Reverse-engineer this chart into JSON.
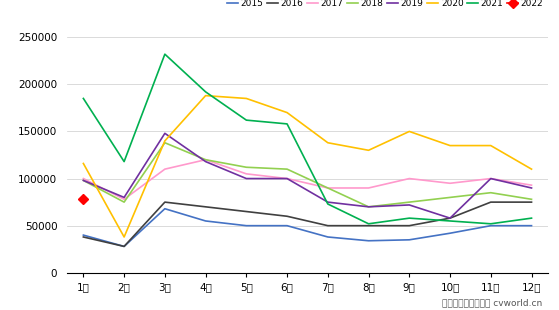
{
  "months": [
    "1月",
    "2月",
    "3月",
    "4月",
    "5月",
    "6月",
    "7月",
    "8月",
    "9月",
    "10月",
    "11月",
    "12月"
  ],
  "series": {
    "2015": {
      "values": [
        40000,
        28000,
        68000,
        55000,
        50000,
        50000,
        38000,
        34000,
        35000,
        42000,
        50000,
        50000
      ],
      "color": "#4472C4",
      "marker": null,
      "linewidth": 1.2
    },
    "2016": {
      "values": [
        38000,
        28000,
        75000,
        70000,
        65000,
        60000,
        50000,
        50000,
        50000,
        58000,
        75000,
        75000
      ],
      "color": "#404040",
      "marker": null,
      "linewidth": 1.2
    },
    "2017": {
      "values": [
        100000,
        78000,
        110000,
        120000,
        105000,
        100000,
        90000,
        90000,
        100000,
        95000,
        100000,
        93000
      ],
      "color": "#FF99CC",
      "marker": null,
      "linewidth": 1.2
    },
    "2018": {
      "values": [
        98000,
        75000,
        138000,
        120000,
        112000,
        110000,
        90000,
        70000,
        75000,
        80000,
        85000,
        78000
      ],
      "color": "#92D050",
      "marker": null,
      "linewidth": 1.2
    },
    "2019": {
      "values": [
        98000,
        80000,
        148000,
        118000,
        100000,
        100000,
        75000,
        70000,
        72000,
        58000,
        100000,
        90000
      ],
      "color": "#7030A0",
      "marker": null,
      "linewidth": 1.2
    },
    "2020": {
      "values": [
        116000,
        38000,
        140000,
        188000,
        185000,
        170000,
        138000,
        130000,
        150000,
        135000,
        135000,
        110000
      ],
      "color": "#FFC000",
      "marker": null,
      "linewidth": 1.2
    },
    "2021": {
      "values": [
        185000,
        118000,
        232000,
        192000,
        162000,
        158000,
        73000,
        52000,
        58000,
        55000,
        52000,
        58000
      ],
      "color": "#00B050",
      "marker": null,
      "linewidth": 1.2
    },
    "2022": {
      "values": [
        78000
      ],
      "color": "#FF0000",
      "marker": "D",
      "linewidth": 1.2
    }
  },
  "ylim": [
    0,
    250000
  ],
  "yticks": [
    0,
    50000,
    100000,
    150000,
    200000,
    250000
  ],
  "footer": "制图：第一商用车网 cvworld.cn",
  "background_color": "#FFFFFF",
  "grid_color": "#CCCCCC"
}
